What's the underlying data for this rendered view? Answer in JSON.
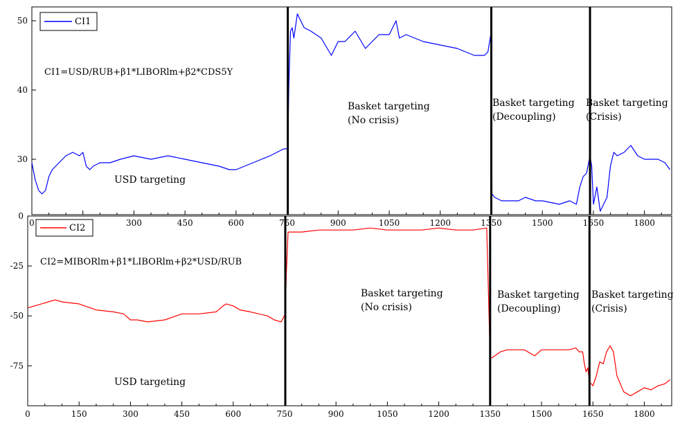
{
  "chart_data": [
    {
      "type": "line",
      "title": "",
      "xlabel": "",
      "ylabel": "",
      "xlim": [
        0,
        1880
      ],
      "ylim": [
        22,
        52
      ],
      "grid": false,
      "legend_position": "top-left",
      "x_ticks": [
        0,
        150,
        300,
        450,
        600,
        750,
        900,
        1050,
        1200,
        1350,
        1500,
        1650,
        1800
      ],
      "x_tick_labels": [
        "0",
        "150",
        "300",
        "450",
        "600",
        "750",
        "900",
        "1050",
        "1200",
        "1350",
        "1500",
        "1650",
        "1800"
      ],
      "y_ticks": [
        30,
        40,
        50
      ],
      "y_tick_labels": [
        "30",
        "40",
        "50"
      ],
      "series": [
        {
          "name": "CI1",
          "color": "#0000ff",
          "x": [
            0,
            10,
            20,
            30,
            40,
            50,
            60,
            80,
            100,
            120,
            140,
            150,
            160,
            170,
            180,
            200,
            230,
            260,
            300,
            350,
            400,
            450,
            500,
            550,
            580,
            600,
            650,
            700,
            740,
            752,
            755,
            760,
            765,
            770,
            780,
            790,
            800,
            820,
            850,
            880,
            900,
            920,
            950,
            980,
            1000,
            1020,
            1050,
            1070,
            1080,
            1100,
            1150,
            1200,
            1250,
            1300,
            1330,
            1340,
            1350,
            1352,
            1360,
            1380,
            1400,
            1430,
            1450,
            1480,
            1500,
            1550,
            1580,
            1600,
            1610,
            1620,
            1630,
            1640,
            1645,
            1650,
            1660,
            1670,
            1680,
            1690,
            1700,
            1710,
            1720,
            1740,
            1760,
            1780,
            1800,
            1820,
            1840,
            1860,
            1875
          ],
          "y": [
            29.5,
            27,
            25.5,
            25,
            25.5,
            27.5,
            28.5,
            29.5,
            30.5,
            31,
            30.5,
            31,
            29,
            28.5,
            29,
            29.5,
            29.5,
            30,
            30.5,
            30,
            30.5,
            30,
            29.5,
            29,
            28.5,
            28.5,
            29.5,
            30.5,
            31.5,
            31.5,
            40.5,
            48.5,
            49,
            47.5,
            51,
            50,
            49,
            48.5,
            47.5,
            45,
            47,
            47,
            48.5,
            46,
            47,
            48,
            48,
            50,
            47.5,
            48,
            47,
            46.5,
            46,
            45,
            45,
            45.5,
            48.5,
            25,
            24.5,
            24,
            24,
            24,
            24.5,
            24,
            24,
            23.5,
            24,
            23.5,
            26,
            27.5,
            28,
            30.5,
            29,
            23.5,
            26,
            22.5,
            23.5,
            24.5,
            29,
            31,
            30.5,
            31,
            32,
            30.5,
            30,
            30,
            30,
            29.5,
            28.5
          ]
        }
      ],
      "annotations": [
        {
          "text": "CI1=USD/RUB+β1*LIBORlm+β2*CDS5Y",
          "kind": "formula"
        },
        {
          "text": "USD targeting"
        },
        {
          "text": "Basket targeting",
          "text2": "(No crisis)"
        },
        {
          "text": "Basket targeting",
          "text2": "(Decoupling)"
        },
        {
          "text": "Basket targeting",
          "text2": "(Crisis)"
        }
      ],
      "vertical_lines_x": [
        752,
        1350,
        1640
      ]
    },
    {
      "type": "line",
      "title": "",
      "xlabel": "",
      "ylabel": "",
      "xlim": [
        0,
        1880
      ],
      "ylim": [
        -95,
        0
      ],
      "grid": false,
      "legend_position": "top-left",
      "x_ticks": [
        0,
        150,
        300,
        450,
        600,
        750,
        900,
        1050,
        1200,
        1350,
        1500,
        1650,
        1800
      ],
      "x_tick_labels": [
        "0",
        "150",
        "300",
        "450",
        "600",
        "750",
        "900",
        "1050",
        "1200",
        "1350",
        "1500",
        "1650",
        "1800"
      ],
      "y_ticks": [
        0,
        -25,
        -50,
        -75
      ],
      "y_tick_labels": [
        "0",
        "-25",
        "-50",
        "-75"
      ],
      "series": [
        {
          "name": "CI2",
          "color": "#ff0000",
          "x": [
            0,
            20,
            40,
            60,
            80,
            100,
            150,
            200,
            250,
            280,
            300,
            320,
            350,
            400,
            450,
            500,
            550,
            570,
            580,
            600,
            620,
            650,
            700,
            720,
            740,
            752,
            755,
            760,
            800,
            850,
            900,
            950,
            1000,
            1050,
            1100,
            1150,
            1200,
            1250,
            1300,
            1340,
            1350,
            1355,
            1380,
            1400,
            1420,
            1450,
            1470,
            1480,
            1500,
            1550,
            1580,
            1600,
            1610,
            1620,
            1625,
            1630,
            1635,
            1640,
            1650,
            1660,
            1670,
            1680,
            1690,
            1700,
            1710,
            1720,
            1740,
            1760,
            1780,
            1800,
            1820,
            1840,
            1860,
            1875
          ],
          "y": [
            -46,
            -45,
            -44,
            -43,
            -42,
            -43,
            -44,
            -47,
            -48,
            -49,
            -52,
            -52,
            -53,
            -52,
            -49,
            -49,
            -48,
            -45,
            -44,
            -45,
            -47,
            -48,
            -50,
            -52,
            -53,
            -49,
            -29,
            -8,
            -8,
            -7,
            -7,
            -7,
            -6,
            -7,
            -7,
            -7,
            -6,
            -7,
            -7,
            -6,
            -71,
            -71,
            -68,
            -67,
            -67,
            -67,
            -69,
            -70,
            -67,
            -67,
            -67,
            -66,
            -68,
            -68,
            -74,
            -78,
            -76,
            -83,
            -85,
            -80,
            -73,
            -74,
            -68,
            -65,
            -68,
            -80,
            -88,
            -90,
            -88,
            -86,
            -87,
            -85,
            -84,
            -82
          ]
        }
      ],
      "annotations": [
        {
          "text": "CI2=MIBORlm+β1*LIBORlm+β2*USD/RUB",
          "kind": "formula"
        },
        {
          "text": "USD targeting"
        },
        {
          "text": "Basket targeting",
          "text2": "(No crisis)"
        },
        {
          "text": "Basket targeting",
          "text2": "(Decoupling)"
        },
        {
          "text": "Basket targeting",
          "text2": "(Crisis)"
        }
      ],
      "vertical_lines_x": [
        752,
        1350,
        1640
      ]
    }
  ]
}
